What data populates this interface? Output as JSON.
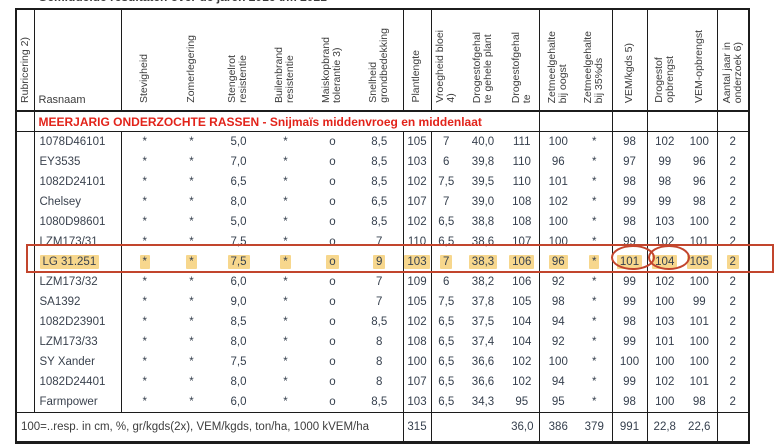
{
  "page": {
    "clipped_title": "Gemiddelde resultaten over de jaren 2016 t/m 2021"
  },
  "table": {
    "banner": "MEERJARIG ONDERZOCHTE RASSEN - Snijmaïs middenvroeg en middenlaat",
    "columns": [
      {
        "id": "rubricering",
        "label": "Rubricering 2)"
      },
      {
        "id": "rasnaam",
        "label": "Rasnaam"
      },
      {
        "id": "stevigheid",
        "label": "Stevigheid"
      },
      {
        "id": "zomerlegering",
        "label": "Zomerlegering"
      },
      {
        "id": "stengelrot",
        "label": "Stengelrot\nresistentie"
      },
      {
        "id": "builenbrand",
        "label": "Builenbrand\nresistentie"
      },
      {
        "id": "maiskopbrand",
        "label": "Maiskopbrand\ntolerantie 3)"
      },
      {
        "id": "snelheid_grondbedekking",
        "label": "Snelheid\ngrondbedekking"
      },
      {
        "id": "plantlengte",
        "label": "Plantlengte"
      },
      {
        "id": "vroegheid_bloei",
        "label": "Vroegheid bloei\n4)"
      },
      {
        "id": "drogestofgehalte_gehele_plant",
        "label": "Drogestofgehal\nte gehele plant"
      },
      {
        "id": "drogestofgehalte",
        "label": "Drogestofgehal\nte"
      },
      {
        "id": "zetmeelgehalte_bij_oogst",
        "label": "Zetmeelgehalte\nbij oogst"
      },
      {
        "id": "zetmeelgehalte_bij_35ds",
        "label": "Zetmeelgehalte\nbij 35%ds"
      },
      {
        "id": "vem_kgds",
        "label": "VEM/kgds 5)"
      },
      {
        "id": "drogestof_opbrengst",
        "label": "Drogestof\nopbrengst"
      },
      {
        "id": "vem_opbrengst",
        "label": "VEM-opbrengst"
      },
      {
        "id": "aantal_jaar",
        "label": "Aantal jaar in\nonderzoek 6)"
      }
    ],
    "rows": [
      {
        "highlight": false,
        "cells": [
          "",
          "1078D46101",
          "*",
          "*",
          "5,0",
          "*",
          "o",
          "8,5",
          "105",
          "7",
          "40,0",
          "111",
          "100",
          "*",
          "98",
          "102",
          "100",
          "2"
        ]
      },
      {
        "highlight": false,
        "cells": [
          "",
          "EY3535",
          "*",
          "*",
          "7,0",
          "*",
          "o",
          "8,5",
          "103",
          "6",
          "39,8",
          "110",
          "96",
          "*",
          "97",
          "99",
          "96",
          "2"
        ]
      },
      {
        "highlight": false,
        "cells": [
          "",
          "1082D24101",
          "*",
          "*",
          "6,5",
          "*",
          "o",
          "8,5",
          "102",
          "7,5",
          "39,5",
          "110",
          "101",
          "*",
          "98",
          "98",
          "96",
          "2"
        ]
      },
      {
        "highlight": false,
        "cells": [
          "",
          "Chelsey",
          "*",
          "*",
          "8,0",
          "*",
          "o",
          "6,5",
          "107",
          "7",
          "39,0",
          "108",
          "102",
          "*",
          "99",
          "99",
          "98",
          "2"
        ]
      },
      {
        "highlight": false,
        "cells": [
          "",
          "1080D98601",
          "*",
          "*",
          "5,0",
          "*",
          "o",
          "8,5",
          "102",
          "6,5",
          "38,8",
          "108",
          "100",
          "*",
          "98",
          "103",
          "100",
          "2"
        ]
      },
      {
        "highlight": false,
        "cells": [
          "",
          "LZM173/31",
          "*",
          "*",
          "7,5",
          "*",
          "o",
          "7",
          "110",
          "6,5",
          "38,6",
          "107",
          "100",
          "*",
          "99",
          "102",
          "101",
          "2"
        ]
      },
      {
        "highlight": true,
        "cells": [
          "",
          "LG 31.251",
          "*",
          "*",
          "7,5",
          "*",
          "o",
          "9",
          "103",
          "7",
          "38,3",
          "106",
          "96",
          "*",
          "101",
          "104",
          "105",
          "2"
        ]
      },
      {
        "highlight": false,
        "cells": [
          "",
          "LZM173/32",
          "*",
          "*",
          "6,0",
          "*",
          "o",
          "7",
          "109",
          "6",
          "38,2",
          "106",
          "92",
          "*",
          "99",
          "102",
          "100",
          "2"
        ]
      },
      {
        "highlight": false,
        "cells": [
          "",
          "SA1392",
          "*",
          "*",
          "9,0",
          "*",
          "o",
          "7",
          "105",
          "7,5",
          "37,8",
          "105",
          "98",
          "*",
          "99",
          "100",
          "99",
          "2"
        ]
      },
      {
        "highlight": false,
        "cells": [
          "",
          "1082D23901",
          "*",
          "*",
          "8,5",
          "*",
          "o",
          "8,5",
          "102",
          "6,5",
          "37,5",
          "104",
          "94",
          "*",
          "98",
          "103",
          "101",
          "2"
        ]
      },
      {
        "highlight": false,
        "cells": [
          "",
          "LZM173/33",
          "*",
          "*",
          "8,0",
          "*",
          "o",
          "8",
          "108",
          "6,5",
          "37,4",
          "104",
          "92",
          "*",
          "99",
          "101",
          "100",
          "2"
        ]
      },
      {
        "highlight": false,
        "cells": [
          "",
          "SY Xander",
          "*",
          "*",
          "7,5",
          "*",
          "o",
          "8",
          "100",
          "6,5",
          "36,6",
          "102",
          "100",
          "*",
          "100",
          "100",
          "100",
          "2"
        ]
      },
      {
        "highlight": false,
        "cells": [
          "",
          "1082D24401",
          "*",
          "*",
          "8,0",
          "*",
          "o",
          "8",
          "107",
          "6,5",
          "36,6",
          "102",
          "94",
          "*",
          "99",
          "102",
          "101",
          "2"
        ]
      },
      {
        "highlight": false,
        "cells": [
          "",
          "Farmpower",
          "*",
          "*",
          "6,0",
          "*",
          "o",
          "8,5",
          "103",
          "6,5",
          "34,3",
          "95",
          "95",
          "*",
          "98",
          "100",
          "98",
          "2"
        ]
      }
    ],
    "footer": {
      "note": "100=..resp. in cm, %, gr/kgds(2x), VEM/kgds, ton/ha, 1000 kVEM/ha",
      "plantlengte": "315",
      "drogestofgehalte": "36,0",
      "zetmeelgehalte_bij_oogst": "386",
      "zetmeelgehalte_bij_35ds": "379",
      "vem_kgds": "991",
      "drogestof_opbrengst": "22,8",
      "vem_opbrengst": "22,6"
    }
  },
  "annotations": {
    "highlighted_row": "LG 31.251",
    "circled_values": [
      "101",
      "104"
    ],
    "box_color": "#c2452d",
    "highlight_color": "#f7d78d",
    "banner_color": "#e2231a"
  }
}
